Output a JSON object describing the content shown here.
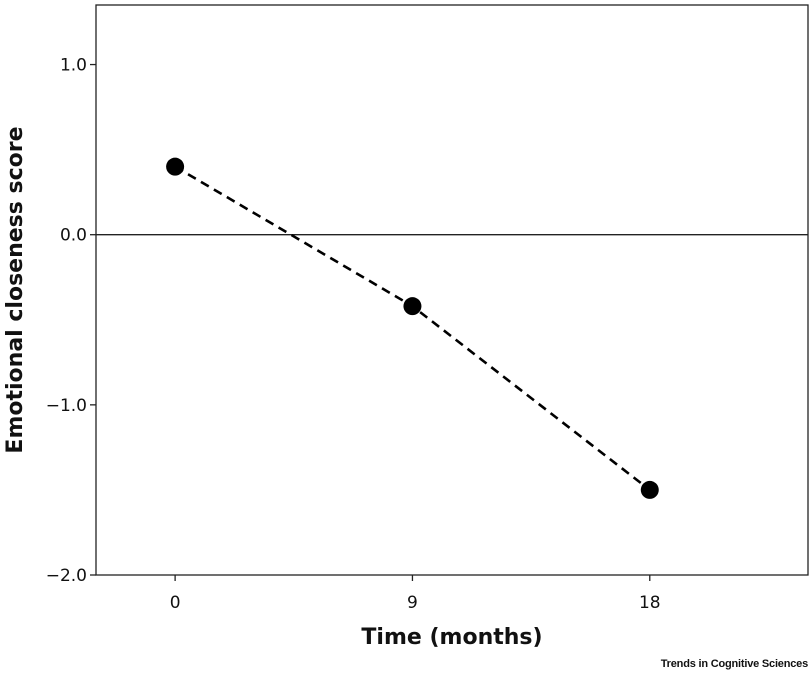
{
  "chart_data": {
    "type": "line",
    "title": "",
    "xlabel": "Time (months)",
    "ylabel": "Emotional closeness score",
    "x": [
      0,
      9,
      18
    ],
    "x_tick_labels": [
      "0",
      "9",
      "18"
    ],
    "xlim": [
      -3,
      24
    ],
    "ylim": [
      -2.0,
      1.35
    ],
    "y_ticks": [
      1.0,
      0.0,
      -1.0,
      -2.0
    ],
    "y_tick_labels": [
      "1.0",
      "0.0",
      "-1.0",
      "-2.0"
    ],
    "reference_line_y": 0.0,
    "grid": false,
    "series": [
      {
        "values": [
          0.4,
          -0.42,
          -1.5
        ],
        "line_style": "dashed",
        "marker": "filled-circle",
        "color": "#000000"
      }
    ]
  },
  "credit": "Trends in Cognitive Sciences"
}
